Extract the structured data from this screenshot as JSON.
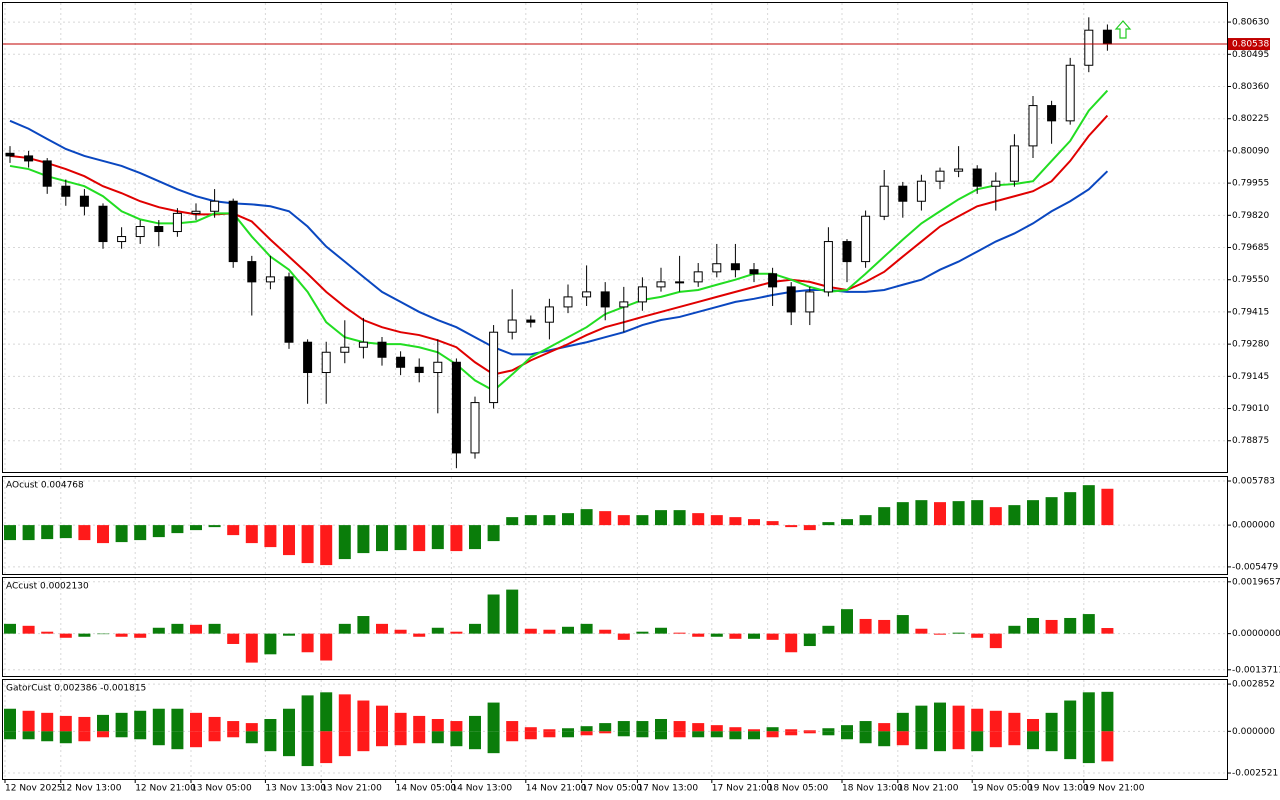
{
  "chart_data": [
    {
      "type": "candlestick",
      "categories": [
        "12 Nov 2025",
        null,
        null,
        "12 Nov 13:00",
        null,
        null,
        null,
        "12 Nov 21:00",
        null,
        null,
        "13 Nov 05:00",
        null,
        null,
        null,
        "13 Nov 13:00",
        null,
        null,
        "13 Nov 21:00",
        null,
        null,
        null,
        "14 Nov 05:00",
        null,
        null,
        "14 Nov 13:00",
        null,
        null,
        null,
        "14 Nov 21:00",
        null,
        null,
        "17 Nov 05:00",
        null,
        null,
        "17 Nov 13:00",
        null,
        null,
        null,
        "17 Nov 21:00",
        null,
        null,
        "18 Nov 05:00",
        null,
        null,
        null,
        "18 Nov 13:00",
        null,
        null,
        "18 Nov 21:00",
        null,
        null,
        null,
        "19 Nov 05:00",
        null,
        null,
        "19 Nov 13:00",
        null,
        null,
        "19 Nov 21:00",
        null
      ],
      "open": [
        0.8008,
        0.80069,
        0.80048,
        0.79942,
        0.799,
        0.79858,
        0.7971,
        0.79731,
        0.79773,
        0.79752,
        0.79828,
        0.79837,
        0.79879,
        0.79626,
        0.79541,
        0.79562,
        0.79288,
        0.79161,
        0.79246,
        0.79267,
        0.79288,
        0.79225,
        0.79183,
        0.79161,
        0.79204,
        0.78824,
        0.79035,
        0.7933,
        0.79381,
        0.79372,
        0.79436,
        0.79478,
        0.79499,
        0.79436,
        0.79457,
        0.7952,
        0.79541,
        0.79541,
        0.79583,
        0.79617,
        0.79592,
        0.79575,
        0.7952,
        0.79415,
        0.79499,
        0.7971,
        0.79626,
        0.79816,
        0.79942,
        0.79879,
        0.79963,
        0.80005,
        0.80014,
        0.79942,
        0.79963,
        0.80111,
        0.8028,
        0.80216,
        0.80449,
        0.80596
      ],
      "high": [
        0.8011,
        0.8009,
        0.8006,
        0.7997,
        0.7993,
        0.7987,
        0.7977,
        0.798,
        0.798,
        0.7985,
        0.7987,
        0.7993,
        0.7989,
        0.7965,
        0.7965,
        0.7958,
        0.793,
        0.7929,
        0.7938,
        0.7939,
        0.7931,
        0.7925,
        0.7922,
        0.793,
        0.7922,
        0.7906,
        0.7936,
        0.7951,
        0.794,
        0.7947,
        0.7953,
        0.7961,
        0.7954,
        0.7952,
        0.7956,
        0.796,
        0.7965,
        0.7962,
        0.797,
        0.797,
        0.7962,
        0.796,
        0.7954,
        0.7952,
        0.7977,
        0.7972,
        0.7984,
        0.8001,
        0.7996,
        0.7999,
        0.8002,
        0.8011,
        0.8003,
        0.8,
        0.8016,
        0.8032,
        0.803,
        0.8048,
        0.8065,
        0.8062
      ],
      "low": [
        0.8004,
        0.8002,
        0.7991,
        0.7986,
        0.7982,
        0.7968,
        0.7968,
        0.797,
        0.7969,
        0.7973,
        0.798,
        0.7981,
        0.796,
        0.794,
        0.7951,
        0.7926,
        0.7903,
        0.7903,
        0.792,
        0.7922,
        0.7919,
        0.7915,
        0.7912,
        0.7899,
        0.7876,
        0.788,
        0.7901,
        0.793,
        0.7935,
        0.793,
        0.7941,
        0.7944,
        0.7938,
        0.7933,
        0.7942,
        0.795,
        0.795,
        0.7952,
        0.7956,
        0.7956,
        0.7954,
        0.7944,
        0.7936,
        0.7936,
        0.7948,
        0.7954,
        0.796,
        0.798,
        0.7981,
        0.7984,
        0.7993,
        0.7998,
        0.7991,
        0.7984,
        0.7994,
        0.8006,
        0.8012,
        0.802,
        0.8042,
        0.8051
      ],
      "close": [
        0.80069,
        0.80048,
        0.79942,
        0.799,
        0.79858,
        0.7971,
        0.79731,
        0.79773,
        0.79752,
        0.79828,
        0.79837,
        0.79879,
        0.79626,
        0.79541,
        0.79562,
        0.79288,
        0.79161,
        0.79246,
        0.79267,
        0.79288,
        0.79225,
        0.79183,
        0.79161,
        0.79204,
        0.78824,
        0.79035,
        0.7933,
        0.79381,
        0.79372,
        0.79436,
        0.79478,
        0.79499,
        0.79436,
        0.79457,
        0.7952,
        0.79541,
        0.79541,
        0.79583,
        0.79617,
        0.79592,
        0.79575,
        0.7952,
        0.79415,
        0.79499,
        0.7971,
        0.79626,
        0.79816,
        0.79942,
        0.79879,
        0.79963,
        0.80005,
        0.80014,
        0.79942,
        0.79963,
        0.80111,
        0.8028,
        0.80216,
        0.80449,
        0.80596,
        0.80538
      ],
      "bull_color": "#ffffff",
      "bear_color": "#000000",
      "candle_outline": "#000000",
      "series": [
        {
          "color": "#0a47c0",
          "values": [
            0.80216,
            0.80183,
            0.8014,
            0.80098,
            0.80069,
            0.80048,
            0.80027,
            0.79997,
            0.79963,
            0.79929,
            0.799,
            0.79879,
            0.7987,
            0.79866,
            0.79858,
            0.79837,
            0.79773,
            0.79689,
            0.79626,
            0.79562,
            0.79499,
            0.79457,
            0.79415,
            0.79381,
            0.79351,
            0.79309,
            0.79267,
            0.79237,
            0.79237,
            0.79254,
            0.79271,
            0.79288,
            0.79309,
            0.7933,
            0.7936,
            0.79381,
            0.79394,
            0.79415,
            0.79436,
            0.79457,
            0.7947,
            0.79486,
            0.79499,
            0.79507,
            0.79507,
            0.79499,
            0.79499,
            0.79507,
            0.79529,
            0.7955,
            0.79592,
            0.79626,
            0.79668,
            0.7971,
            0.79744,
            0.79786,
            0.79837,
            0.79879,
            0.79929,
            0.80005
          ]
        },
        {
          "color": "#e00000",
          "values": [
            0.80069,
            0.8006,
            0.80039,
            0.80014,
            0.79984,
            0.79942,
            0.79913,
            0.79879,
            0.79854,
            0.79837,
            0.79824,
            0.79824,
            0.79828,
            0.79794,
            0.79718,
            0.79647,
            0.79575,
            0.79499,
            0.79436,
            0.79381,
            0.79351,
            0.7933,
            0.79318,
            0.79296,
            0.79267,
            0.79204,
            0.79153,
            0.7917,
            0.79212,
            0.79246,
            0.7928,
            0.79318,
            0.79351,
            0.79372,
            0.79394,
            0.79415,
            0.79436,
            0.79457,
            0.79478,
            0.79499,
            0.7952,
            0.79541,
            0.7955,
            0.79541,
            0.7952,
            0.79507,
            0.79541,
            0.79583,
            0.79647,
            0.7971,
            0.79773,
            0.79816,
            0.79858,
            0.79879,
            0.799,
            0.79921,
            0.79963,
            0.80048,
            0.80153,
            0.80238
          ]
        },
        {
          "color": "#22dd22",
          "values": [
            0.80027,
            0.80014,
            0.79984,
            0.79963,
            0.79942,
            0.799,
            0.79837,
            0.79803,
            0.79786,
            0.79786,
            0.79794,
            0.79828,
            0.79828,
            0.79731,
            0.79647,
            0.79592,
            0.79499,
            0.79372,
            0.79309,
            0.79288,
            0.7928,
            0.7928,
            0.79267,
            0.79246,
            0.79195,
            0.79128,
            0.79085,
            0.79153,
            0.79225,
            0.79267,
            0.79309,
            0.79351,
            0.79406,
            0.79436,
            0.79465,
            0.79478,
            0.79499,
            0.79507,
            0.79529,
            0.7955,
            0.79575,
            0.79575,
            0.7955,
            0.7952,
            0.79499,
            0.79507,
            0.79575,
            0.79647,
            0.79718,
            0.79786,
            0.79837,
            0.79887,
            0.79929,
            0.79946,
            0.79951,
            0.79963,
            0.80048,
            0.80132,
            0.80259,
            0.80343
          ]
        }
      ],
      "current_price": {
        "value": 0.80538,
        "label": "0.80538",
        "color": "#c00000"
      },
      "ylim": [
        0.78744,
        0.8071
      ],
      "yticks": [
        {
          "value": 0.8063,
          "label": "0.80630"
        },
        {
          "value": 0.80495,
          "label": "0.80495"
        },
        {
          "value": 0.8036,
          "label": "0.80360"
        },
        {
          "value": 0.80225,
          "label": "0.80225"
        },
        {
          "value": 0.8009,
          "label": "0.80090"
        },
        {
          "value": 0.79955,
          "label": "0.79955"
        },
        {
          "value": 0.7982,
          "label": "0.79820"
        },
        {
          "value": 0.79685,
          "label": "0.79685"
        },
        {
          "value": 0.7955,
          "label": "0.79550"
        },
        {
          "value": 0.79415,
          "label": "0.79415"
        },
        {
          "value": 0.7928,
          "label": "0.79280"
        },
        {
          "value": 0.79145,
          "label": "0.79145"
        },
        {
          "value": 0.7901,
          "label": "0.79010"
        },
        {
          "value": 0.78875,
          "label": "0.78875"
        }
      ],
      "grid": true
    },
    {
      "type": "bar",
      "title": "AOcust 0.004768",
      "values": [
        -0.001965,
        -0.001965,
        -0.001834,
        -0.001703,
        -0.001965,
        -0.002358,
        -0.002227,
        -0.001965,
        -0.001572,
        -0.001048,
        -0.000655,
        -0.000262,
        -0.00131,
        -0.002358,
        -0.002882,
        -0.00393,
        -0.004978,
        -0.00524,
        -0.004454,
        -0.003668,
        -0.003406,
        -0.003275,
        -0.003406,
        -0.003144,
        -0.003406,
        -0.003144,
        -0.002096,
        0.001048,
        0.00131,
        0.00131,
        0.001572,
        0.002096,
        0.001834,
        0.00131,
        0.00131,
        0.001965,
        0.001965,
        0.001572,
        0.00131,
        0.001048,
        0.000786,
        0.000524,
        -0.000262,
        -0.000655,
        0.000393,
        0.000786,
        0.00131,
        0.002358,
        0.003013,
        0.003275,
        0.003013,
        0.003144,
        0.003275,
        0.002358,
        0.00262,
        0.003275,
        0.003668,
        0.004323,
        0.00524,
        0.004768
      ],
      "up_color": "#0a7d0a",
      "down_color": "#ff1a1a",
      "ylim": [
        -0.00641,
        0.00631
      ],
      "yticks": [
        0.005783,
        {
          "value": 0,
          "label": "0.000000"
        },
        -0.005479
      ],
      "grid": true
    },
    {
      "type": "bar",
      "title": "ACcust 0.0002130",
      "values": [
        0.000371,
        0.000297,
        7.4e-05,
        -0.000157,
        -0.000118,
        0,
        -0.000118,
        -0.000157,
        0.000223,
        0.000371,
        0.000334,
        0.000371,
        -0.000392,
        -0.001098,
        -0.000784,
        -7.8e-05,
        -0.000706,
        -0.001019,
        0.000371,
        0.000668,
        0.000371,
        0.000148,
        -0.000118,
        0.000223,
        7.4e-05,
        0.000371,
        0.001484,
        0.00167,
        0.000186,
        0.000148,
        0.00026,
        0.000371,
        0.000148,
        -0.000235,
        7.4e-05,
        0.000223,
        3.7e-05,
        -0.000118,
        -0.000118,
        -0.000196,
        -0.000196,
        -0.000235,
        -0.000706,
        -0.00047,
        0.000297,
        0.000928,
        0.000557,
        0.000519,
        0.000705,
        0.000186,
        -3.9e-05,
        3.7e-05,
        -0.000157,
        -0.000549,
        0.000297,
        0.000594,
        0.000519,
        0.000594,
        0.000742,
        0.000213
      ],
      "up_color": "#0a7d0a",
      "down_color": "#ff1a1a",
      "ylim": [
        -0.0016063,
        0.00211
      ],
      "yticks": [
        0.0019657,
        {
          "value": 0,
          "label": "0.0000000"
        },
        -0.0013711
      ],
      "grid": true
    },
    {
      "type": "gator",
      "title": "GatorCust 0.002386 -0.001815",
      "upper": [
        0.001364,
        0.00124,
        0.001116,
        0.00093,
        0.000868,
        0.000992,
        0.001116,
        0.00124,
        0.001364,
        0.001364,
        0.001116,
        0.000868,
        0.00062,
        0.000496,
        0.000744,
        0.001364,
        0.00217,
        0.002356,
        0.002232,
        0.00186,
        0.00155,
        0.001116,
        0.00093,
        0.000744,
        0.00062,
        0.00093,
        0.001736,
        0.00062,
        0.000248,
        0.000124,
        0.000186,
        0.00031,
        0.000496,
        0.00062,
        0.00062,
        0.000744,
        0.00062,
        0.000496,
        0.000372,
        0.000248,
        0.000124,
        0.000248,
        0.000124,
        6.2e-05,
        0.000186,
        0.000372,
        0.00062,
        0.000496,
        0.001116,
        0.00155,
        0.001736,
        0.00155,
        0.001364,
        0.00124,
        0.001116,
        0.000744,
        0.001116,
        0.00186,
        0.002356,
        0.002386
      ],
      "lower": [
        -0.00048,
        -0.00048,
        -0.0006,
        -0.00072,
        -0.0006,
        -0.00036,
        -0.00036,
        -0.00048,
        -0.00084,
        -0.00108,
        -0.00096,
        -0.0006,
        -0.00036,
        -0.00072,
        -0.0012,
        -0.0015,
        -0.0021,
        -0.00192,
        -0.0015,
        -0.0012,
        -0.0009,
        -0.00084,
        -0.00072,
        -0.00072,
        -0.0009,
        -0.00108,
        -0.00132,
        -0.0006,
        -0.00048,
        -0.00036,
        -0.00036,
        -0.00024,
        -0.00012,
        -0.0003,
        -0.00036,
        -0.00048,
        -0.00036,
        -0.00036,
        -0.00036,
        -0.00048,
        -0.00048,
        -0.00036,
        -0.00024,
        -0.00012,
        -0.00024,
        -0.00048,
        -0.00072,
        -0.0009,
        -0.00084,
        -0.00108,
        -0.0012,
        -0.00108,
        -0.0012,
        -0.00096,
        -0.00084,
        -0.00108,
        -0.0012,
        -0.00168,
        -0.00192,
        -0.001815
      ],
      "up_color": "#0a7d0a",
      "down_color": "#ff1a1a",
      "ylim": [
        -0.002881,
        0.0031
      ],
      "yticks": [
        0.002852,
        {
          "value": 0,
          "label": "0.000000"
        },
        -0.002521
      ],
      "grid": true
    }
  ]
}
